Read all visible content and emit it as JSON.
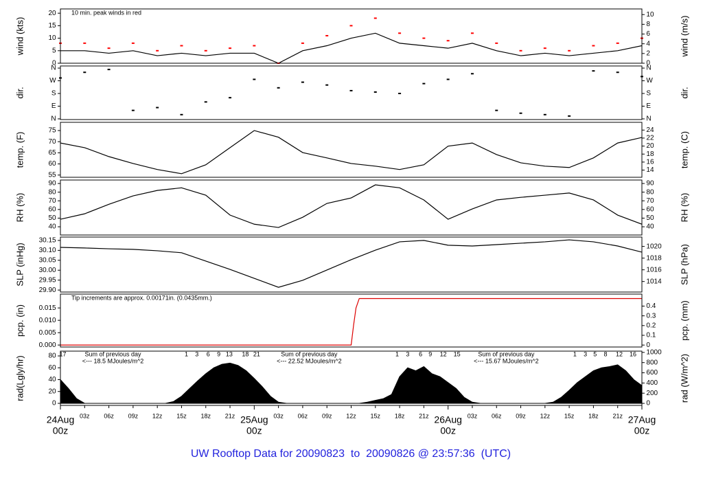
{
  "title": "UW Rooftop Data for 20090823  to  20090826 @ 23:57:36  (UTC)",
  "chart_data": [
    {
      "type": "line",
      "ylabel": "wind (kts)",
      "y2label": "wind (m/s)",
      "xlim": [
        0,
        72
      ],
      "ylim": [
        0,
        21.7
      ],
      "yticks": [
        0,
        5,
        10,
        15,
        20
      ],
      "y2lim": [
        0,
        11.16
      ],
      "y2ticks": [
        0,
        2,
        4,
        6,
        8,
        10
      ],
      "note": "10 min. peak winds in red",
      "note_color": "#dd0000",
      "x": [
        0,
        3,
        6,
        9,
        12,
        15,
        18,
        21,
        24,
        27,
        30,
        33,
        36,
        39,
        42,
        45,
        48,
        51,
        54,
        57,
        60,
        63,
        66,
        69,
        72
      ],
      "series": [
        {
          "color": "#000000",
          "values": [
            5,
            5,
            4,
            5,
            3,
            4,
            3,
            4,
            4,
            0,
            5,
            7,
            10,
            12,
            8,
            7,
            6,
            8,
            5,
            3,
            4,
            3,
            4,
            5,
            7
          ]
        },
        {
          "type": "scatter",
          "color": "#ff0000",
          "values": [
            8,
            8,
            6,
            8,
            5,
            7,
            5,
            6,
            7,
            0,
            8,
            11,
            15,
            18,
            12,
            10,
            9,
            12,
            8,
            5,
            6,
            5,
            7,
            8,
            10
          ]
        }
      ]
    },
    {
      "type": "scatter",
      "ylabel": "dir.",
      "y2label": "dir.",
      "xlim": [
        0,
        72
      ],
      "ylim": [
        -5,
        375
      ],
      "yticks": [
        {
          "value": 0,
          "label": "N"
        },
        {
          "value": 90,
          "label": "E"
        },
        {
          "value": 180,
          "label": "S"
        },
        {
          "value": 270,
          "label": "W"
        },
        {
          "value": 360,
          "label": "N"
        }
      ],
      "y2lim": [
        -5,
        375
      ],
      "y2ticks": [
        {
          "value": 0,
          "label": "N"
        },
        {
          "value": 90,
          "label": "E"
        },
        {
          "value": 180,
          "label": "S"
        },
        {
          "value": 270,
          "label": "W"
        },
        {
          "value": 360,
          "label": "N"
        }
      ],
      "x": [
        0,
        3,
        6,
        9,
        12,
        15,
        18,
        21,
        24,
        27,
        30,
        33,
        36,
        39,
        42,
        45,
        48,
        51,
        54,
        57,
        60,
        63,
        66,
        69,
        72
      ],
      "series": [
        {
          "color": "#000000",
          "values": [
            290,
            330,
            350,
            60,
            80,
            30,
            120,
            150,
            280,
            220,
            260,
            240,
            200,
            190,
            180,
            250,
            280,
            320,
            60,
            40,
            30,
            20,
            340,
            330,
            300
          ]
        }
      ]
    },
    {
      "type": "line",
      "ylabel": "temp. (F)",
      "y2label": "temp. (C)",
      "xlim": [
        0,
        72
      ],
      "ylim": [
        54,
        78.7
      ],
      "yticks": [
        55,
        60,
        65,
        70,
        75
      ],
      "y2lim": [
        12.2,
        25.94
      ],
      "y2ticks": [
        14,
        16,
        18,
        20,
        22,
        24
      ],
      "x": [
        0,
        3,
        6,
        9,
        12,
        15,
        18,
        21,
        24,
        27,
        30,
        33,
        36,
        39,
        42,
        45,
        48,
        51,
        54,
        57,
        60,
        63,
        66,
        69,
        72
      ],
      "series": [
        {
          "color": "#000000",
          "values": [
            69.4,
            67.3,
            63.3,
            60.2,
            57.5,
            55.6,
            59.6,
            67.3,
            75,
            72,
            65.1,
            62.7,
            60.2,
            59,
            57.5,
            59.6,
            68,
            69.4,
            64.2,
            60.5,
            59,
            58.4,
            62.7,
            69.4,
            71.9
          ]
        }
      ]
    },
    {
      "type": "line",
      "ylabel": "RH (%)",
      "y2label": "RH (%)",
      "xlim": [
        0,
        72
      ],
      "ylim": [
        30.5,
        94
      ],
      "yticks": [
        40,
        50,
        60,
        70,
        80,
        90
      ],
      "y2lim": [
        30.5,
        94
      ],
      "y2ticks": [
        40,
        50,
        60,
        70,
        80,
        90
      ],
      "x": [
        0,
        3,
        6,
        9,
        12,
        15,
        18,
        21,
        24,
        27,
        30,
        33,
        36,
        39,
        42,
        45,
        48,
        51,
        54,
        57,
        60,
        63,
        66,
        69,
        72
      ],
      "series": [
        {
          "color": "#000000",
          "values": [
            48.7,
            55,
            66,
            75.7,
            82,
            85,
            76.5,
            53.5,
            43,
            39.2,
            51,
            67,
            73.3,
            88.4,
            85,
            71,
            48.7,
            60.6,
            71,
            74,
            76.5,
            79,
            71,
            53.5,
            43
          ]
        }
      ]
    },
    {
      "type": "line",
      "ylabel": "SLP (inHg)",
      "y2label": "SLP (hPa)",
      "xlim": [
        0,
        72
      ],
      "ylim": [
        29.89,
        30.167
      ],
      "yticks": [
        {
          "value": 29.9,
          "label": "29.90"
        },
        29.95,
        {
          "value": 30,
          "label": "30.00"
        },
        30.05,
        {
          "value": 30.1,
          "label": "30.10"
        },
        30.15
      ],
      "y2lim": [
        1012.2,
        1021.6
      ],
      "y2ticks": [
        1014,
        1016,
        1018,
        1020
      ],
      "x": [
        0,
        3,
        6,
        9,
        12,
        15,
        18,
        21,
        24,
        27,
        30,
        33,
        36,
        39,
        42,
        45,
        48,
        51,
        54,
        57,
        60,
        63,
        66,
        69,
        72
      ],
      "series": [
        {
          "color": "#000000",
          "values": [
            30.115,
            30.112,
            30.108,
            30.105,
            30.098,
            30.088,
            30.046,
            30.004,
            29.959,
            29.914,
            29.949,
            30.001,
            30.053,
            30.101,
            30.143,
            30.15,
            30.126,
            30.122,
            30.129,
            30.136,
            30.143,
            30.153,
            30.143,
            30.122,
            30.091
          ]
        }
      ]
    },
    {
      "type": "line",
      "ylabel": "pcp. (in)",
      "y2label": "pcp. (mm)",
      "xlim": [
        0,
        72
      ],
      "ylim": [
        -0.0008,
        0.0206
      ],
      "yticks": [
        {
          "value": 0,
          "label": "0.000"
        },
        0.005,
        {
          "value": 0.01,
          "label": "0.010"
        },
        0.015
      ],
      "y2lim": [
        -0.02,
        0.523
      ],
      "y2ticks": [
        0,
        0.1,
        0.2,
        0.3,
        0.4
      ],
      "note": "Tip increments are approx. 0.00171in. (0.0435mm.)",
      "note_color": "#dd0000",
      "x": [
        0,
        36,
        36.3,
        36.6,
        37,
        72
      ],
      "series": [
        {
          "color": "#dd0000",
          "values": [
            0,
            0,
            0.008,
            0.015,
            0.0188,
            0.0188
          ]
        }
      ]
    },
    {
      "type": "area",
      "ylabel": "rad(Lgly/hr)",
      "y2label": "rad (W/m^2)",
      "xlim": [
        0,
        72
      ],
      "ylim": [
        -3.5,
        88.1
      ],
      "yticks": [
        0,
        20,
        40,
        60,
        80
      ],
      "y2lim": [
        -40,
        1025
      ],
      "y2ticks": [
        0,
        200,
        400,
        600,
        800,
        1000
      ],
      "x": [
        0,
        1,
        2,
        3,
        4,
        5,
        6,
        7,
        8,
        9,
        10,
        11,
        12,
        13,
        14,
        15,
        16,
        17,
        18,
        19,
        20,
        21,
        22,
        23,
        24,
        25,
        26,
        27,
        28,
        29,
        30,
        31,
        32,
        33,
        34,
        35,
        36,
        37,
        38,
        39,
        40,
        41,
        42,
        43,
        44,
        45,
        46,
        47,
        48,
        49,
        50,
        51,
        52,
        53,
        54,
        55,
        56,
        57,
        58,
        59,
        60,
        61,
        62,
        63,
        64,
        65,
        66,
        67,
        68,
        69,
        70,
        71,
        72
      ],
      "series": [
        {
          "color": "#000000",
          "values": [
            40,
            25,
            8,
            0,
            0,
            0,
            0,
            0,
            0,
            0,
            0,
            0,
            0,
            0,
            3,
            12,
            25,
            38,
            50,
            60,
            66,
            68,
            64,
            55,
            42,
            28,
            12,
            2,
            0,
            0,
            0,
            0,
            0,
            0,
            0,
            0,
            0,
            0,
            2,
            5,
            8,
            15,
            45,
            60,
            55,
            62,
            50,
            45,
            35,
            25,
            10,
            2,
            0,
            0,
            0,
            0,
            0,
            0,
            0,
            0,
            0,
            2,
            10,
            22,
            35,
            45,
            55,
            60,
            62,
            65,
            55,
            40,
            30
          ]
        }
      ],
      "mark_color": "#9900cc",
      "hour_marks": {
        "x": [
          0.3,
          15.6,
          16.9,
          18.3,
          19.6,
          20.9,
          22.9,
          24.3,
          41.7,
          43,
          44.6,
          45.8,
          47.4,
          49.1,
          63.7,
          65,
          66.2,
          67.5,
          69.2,
          70.9
        ],
        "labels": [
          "17",
          "1",
          "3",
          "6",
          "9",
          "13",
          "18",
          "21",
          "1",
          "3",
          "6",
          "9",
          "12",
          "15",
          "1",
          "3",
          "5",
          "8",
          "12",
          "16"
        ]
      },
      "sums": [
        {
          "x": 6.5,
          "label": "Sum of previous day",
          "amount": "<--- 18.5 MJoules/m^2"
        },
        {
          "x": 30.8,
          "label": "Sum of previous day",
          "amount": "<--- 22.52 MJoules/m^2"
        },
        {
          "x": 55.2,
          "label": "Sum of previous day",
          "amount": "<--- 15.67 MJoules/m^2"
        }
      ],
      "xticks": [
        {
          "value": 3,
          "label": "03z"
        },
        {
          "value": 6,
          "label": "06z"
        },
        {
          "value": 9,
          "label": "09z"
        },
        {
          "value": 12,
          "label": "12z"
        },
        {
          "value": 15,
          "label": "15z"
        },
        {
          "value": 18,
          "label": "18z"
        },
        {
          "value": 21,
          "label": "21z"
        },
        {
          "value": 27,
          "label": "03z"
        },
        {
          "value": 30,
          "label": "06z"
        },
        {
          "value": 33,
          "label": "09z"
        },
        {
          "value": 36,
          "label": "12z"
        },
        {
          "value": 39,
          "label": "15z"
        },
        {
          "value": 42,
          "label": "18z"
        },
        {
          "value": 45,
          "label": "21z"
        },
        {
          "value": 51,
          "label": "03z"
        },
        {
          "value": 54,
          "label": "06z"
        },
        {
          "value": 57,
          "label": "09z"
        },
        {
          "value": 60,
          "label": "12z"
        },
        {
          "value": 63,
          "label": "15z"
        },
        {
          "value": 66,
          "label": "18z"
        },
        {
          "value": 69,
          "label": "21z"
        }
      ],
      "day_color": "#ee0000",
      "day_ticks": [
        {
          "value": 0,
          "label": "24Aug",
          "hour": "00z"
        },
        {
          "value": 24,
          "label": "25Aug",
          "hour": "00z"
        },
        {
          "value": 48,
          "label": "26Aug",
          "hour": "00z"
        },
        {
          "value": 72,
          "label": "27Aug",
          "hour": "00z"
        }
      ]
    }
  ]
}
